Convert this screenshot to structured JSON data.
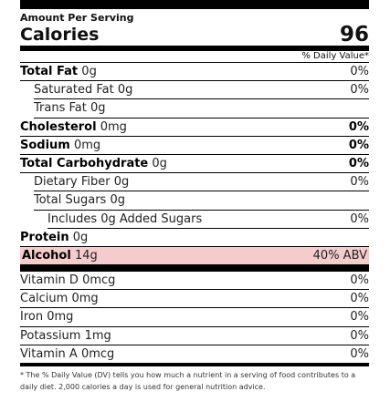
{
  "header": {
    "amount_per_serving": "Amount Per Serving",
    "calories_label": "Calories",
    "calories_value": "96",
    "daily_value_heading": "% Daily Value*"
  },
  "nutrients": [
    {
      "name": "Total Fat",
      "amount": "0g",
      "daily_value": "0%"
    },
    {
      "name": "Saturated Fat",
      "amount": "0g",
      "daily_value": "0%"
    },
    {
      "name": "Trans Fat",
      "amount": "0g"
    },
    {
      "name": "Cholesterol",
      "amount": "0mg",
      "daily_value": "0%"
    },
    {
      "name": "Sodium",
      "amount": "0mg",
      "daily_value": "0%"
    },
    {
      "name": "Total Carbohydrate",
      "amount": "0g",
      "daily_value": "0%"
    },
    {
      "name": "Dietary Fiber",
      "amount": "0g",
      "daily_value": "0%"
    },
    {
      "name": "Total Sugars",
      "amount": "0g"
    },
    {
      "name": "Includes 0g Added Sugars",
      "daily_value": "0%"
    },
    {
      "name": "Protein",
      "amount": "0g"
    },
    {
      "name": "Alcohol",
      "amount": "14g",
      "daily_value": "40% ABV"
    }
  ],
  "vitamins": [
    {
      "name": "Vitamin D",
      "amount": "0mcg",
      "daily_value": "0%"
    },
    {
      "name": "Calcium",
      "amount": "0mg",
      "daily_value": "0%"
    },
    {
      "name": "Iron",
      "amount": "0mg",
      "daily_value": "0%"
    },
    {
      "name": "Potassium",
      "amount": "1mg",
      "daily_value": "0%"
    },
    {
      "name": "Vitamin A",
      "amount": "0mcg",
      "daily_value": "0%"
    }
  ],
  "footnote": "* The % Daily Value (DV) tells you how much a nutrient in a serving of food contributes to a daily diet. 2,000 calories a day is used for general nutrition advice."
}
